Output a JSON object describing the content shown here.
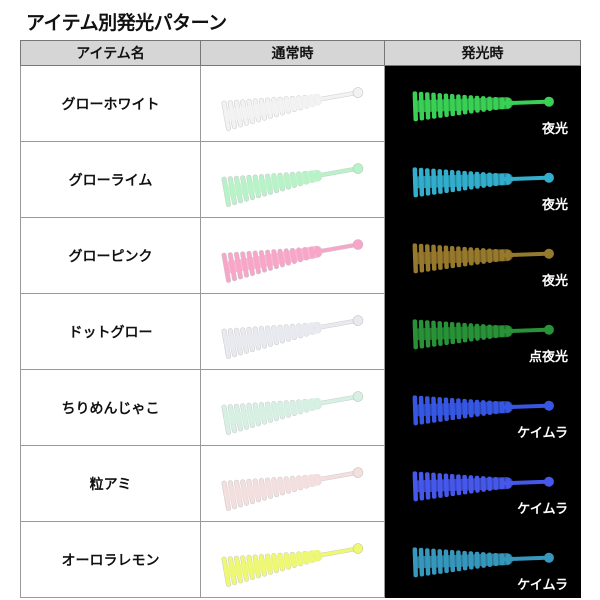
{
  "title": "アイテム別発光パターン",
  "headers": [
    "アイテム名",
    "通常時",
    "発光時"
  ],
  "rows": [
    {
      "name": "グローホワイト",
      "normal_color": "#f2f2f2",
      "glow_color": "#3ddc5a",
      "glow_label": "夜光"
    },
    {
      "name": "グローライム",
      "normal_color": "#b8f2c8",
      "glow_color": "#36b8d8",
      "glow_label": "夜光"
    },
    {
      "name": "グローピンク",
      "normal_color": "#f7a5c8",
      "glow_color": "#a08030",
      "glow_label": "夜光"
    },
    {
      "name": "ドットグロー",
      "normal_color": "#e8eaf0",
      "glow_color": "#2a9a3a",
      "glow_label": "点夜光"
    },
    {
      "name": "ちりめんじゃこ",
      "normal_color": "#d6f0e4",
      "glow_color": "#3a5cf0",
      "glow_label": "ケイムラ"
    },
    {
      "name": "粒アミ",
      "normal_color": "#f4dede",
      "glow_color": "#4a5cf8",
      "glow_label": "ケイムラ"
    },
    {
      "name": "オーロラレモン",
      "normal_color": "#eef870",
      "glow_color": "#3aa0c8",
      "glow_label": "ケイムラ"
    }
  ]
}
